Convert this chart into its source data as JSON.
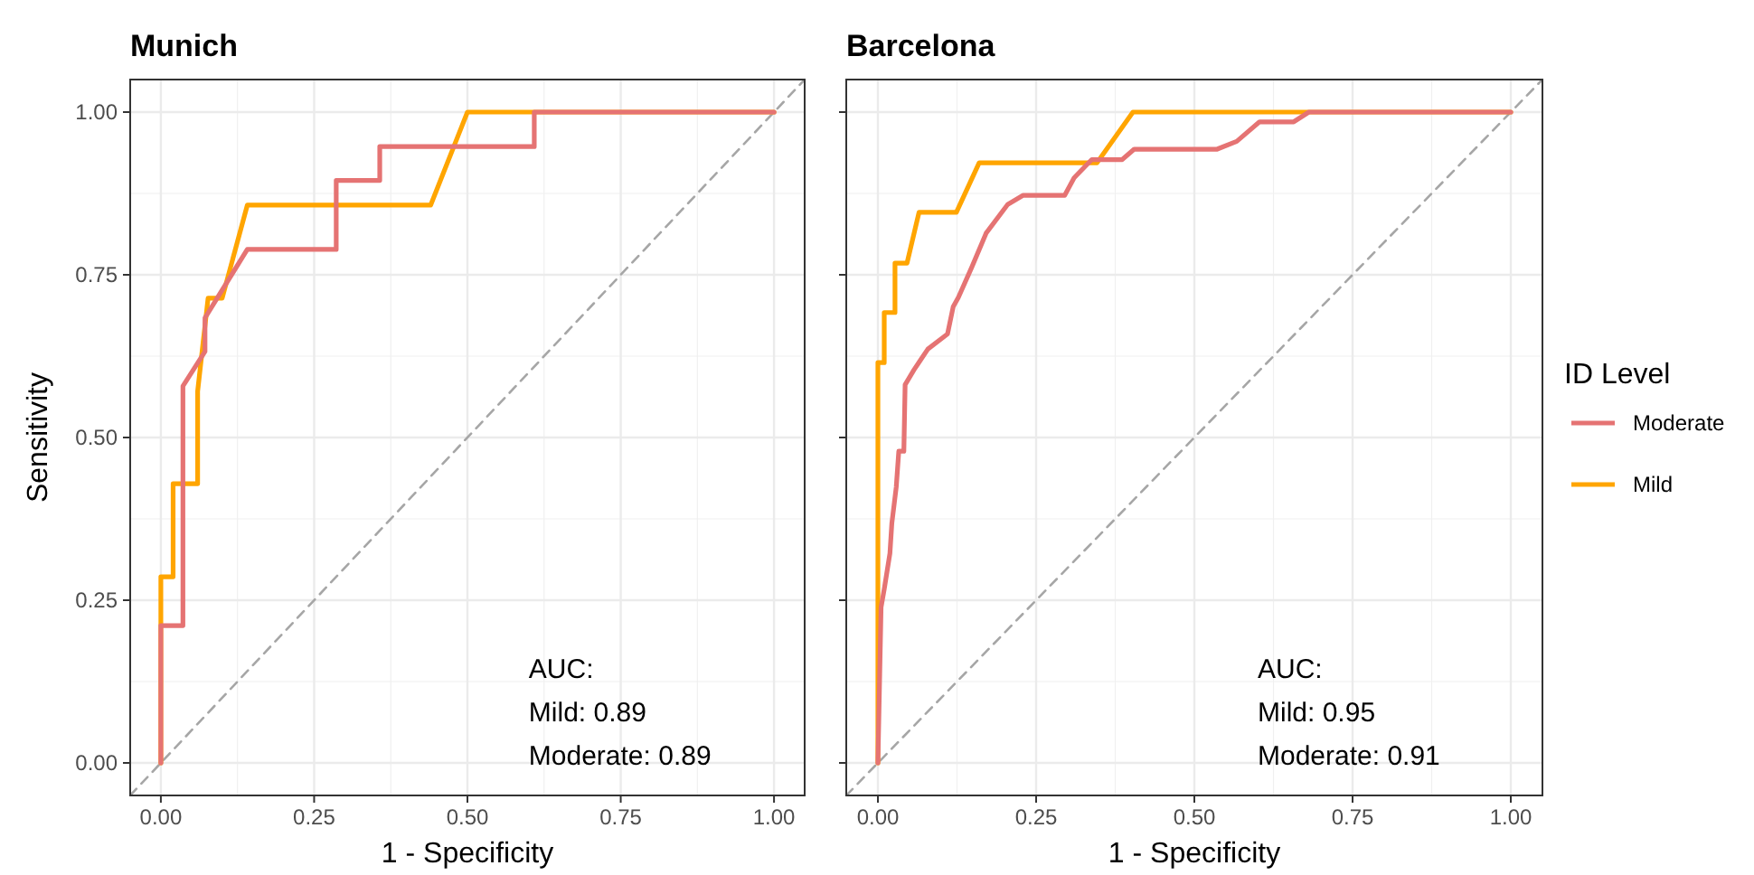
{
  "chart_data": [
    {
      "type": "line",
      "title": "Munich",
      "xlabel": "1 - Specificity",
      "ylabel": "Sensitivity",
      "xlim": [
        -0.05,
        1.05
      ],
      "ylim": [
        -0.05,
        1.05
      ],
      "xticks": [
        {
          "value": 0,
          "label": "0.00"
        },
        {
          "value": 0.25,
          "label": "0.25"
        },
        {
          "value": 0.5,
          "label": "0.50"
        },
        {
          "value": 0.75,
          "label": "0.75"
        },
        {
          "value": 1,
          "label": "1.00"
        }
      ],
      "yticks": [
        {
          "value": 0,
          "label": "0.00"
        },
        {
          "value": 0.25,
          "label": "0.25"
        },
        {
          "value": 0.5,
          "label": "0.50"
        },
        {
          "value": 0.75,
          "label": "0.75"
        },
        {
          "value": 1,
          "label": "1.00"
        }
      ],
      "grid": true,
      "legend": false,
      "annotations": [
        "AUC:",
        "Mild: 0.89",
        "Moderate: 0.89"
      ],
      "series": [
        {
          "color": "#e57373",
          "x": [
            0,
            0,
            0.036,
            0.036,
            0.072,
            0.072,
            0.141,
            0.286,
            0.286,
            0.357,
            0.357,
            0.609,
            0.609,
            1
          ],
          "values": [
            0,
            0.211,
            0.211,
            0.579,
            0.632,
            0.684,
            0.789,
            0.789,
            0.895,
            0.895,
            0.947,
            0.947,
            1,
            1
          ]
        },
        {
          "color": "#ffa500",
          "x": [
            0,
            0,
            0.02,
            0.02,
            0.06,
            0.06,
            0.077,
            0.1,
            0.141,
            0.44,
            0.5,
            1
          ],
          "values": [
            0,
            0.286,
            0.286,
            0.429,
            0.429,
            0.571,
            0.714,
            0.714,
            0.857,
            0.857,
            1,
            1
          ]
        },
        {
          "color": "#a6a6a6",
          "line_style": "dashed",
          "x": [
            -0.05,
            1.05
          ],
          "values": [
            -0.05,
            1.05
          ]
        }
      ]
    },
    {
      "type": "line",
      "title": "Barcelona",
      "xlabel": "1 - Specificity",
      "xlim": [
        -0.05,
        1.05
      ],
      "ylim": [
        -0.05,
        1.05
      ],
      "xticks": [
        {
          "value": 0,
          "label": "0.00"
        },
        {
          "value": 0.25,
          "label": "0.25"
        },
        {
          "value": 0.5,
          "label": "0.50"
        },
        {
          "value": 0.75,
          "label": "0.75"
        },
        {
          "value": 1,
          "label": "1.00"
        }
      ],
      "yticks": [
        {
          "value": 0,
          "label": null
        },
        {
          "value": 0.25,
          "label": null
        },
        {
          "value": 0.5,
          "label": null
        },
        {
          "value": 0.75,
          "label": null
        },
        {
          "value": 1,
          "label": null
        }
      ],
      "tick_labels": "x",
      "grid": true,
      "legend": "right",
      "legend_title": "ID Level",
      "annotations": [
        "AUC:",
        "Mild: 0.95",
        "Moderate: 0.91"
      ],
      "series": [
        {
          "name": "Moderate",
          "color": "#e57373",
          "x": [
            0,
            0.005,
            0.01,
            0.019,
            0.022,
            0.029,
            0.033,
            0.041,
            0.043,
            0.057,
            0.079,
            0.11,
            0.119,
            0.127,
            0.148,
            0.171,
            0.205,
            0.229,
            0.295,
            0.31,
            0.338,
            0.386,
            0.405,
            0.536,
            0.567,
            0.603,
            0.657,
            0.681,
            1
          ],
          "values": [
            0,
            0.239,
            0.267,
            0.322,
            0.368,
            0.424,
            0.479,
            0.479,
            0.581,
            0.604,
            0.636,
            0.659,
            0.701,
            0.715,
            0.761,
            0.814,
            0.858,
            0.872,
            0.872,
            0.899,
            0.927,
            0.927,
            0.943,
            0.943,
            0.955,
            0.985,
            0.985,
            1,
            1
          ]
        },
        {
          "name": "Mild",
          "color": "#ffa500",
          "x": [
            0,
            0,
            0.01,
            0.01,
            0.027,
            0.027,
            0.046,
            0.065,
            0.124,
            0.16,
            0.346,
            0.403,
            1
          ],
          "values": [
            0,
            0.615,
            0.615,
            0.692,
            0.692,
            0.768,
            0.768,
            0.846,
            0.846,
            0.922,
            0.922,
            1,
            1
          ]
        },
        {
          "color": "#a6a6a6",
          "line_style": "dashed",
          "x": [
            -0.05,
            1.05
          ],
          "values": [
            -0.05,
            1.05
          ]
        }
      ]
    }
  ]
}
